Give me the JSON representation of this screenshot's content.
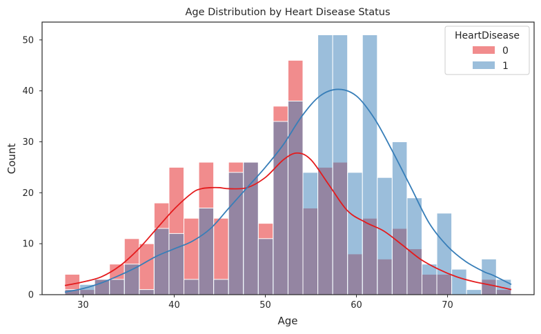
{
  "chart_data": {
    "type": "bar",
    "title": "Age Distribution by Heart Disease Status",
    "xlabel": "Age",
    "ylabel": "Count",
    "xlim": [
      25.5,
      79.5
    ],
    "ylim": [
      0,
      53.5
    ],
    "xticks": [
      30,
      40,
      50,
      60,
      70
    ],
    "yticks": [
      0,
      10,
      20,
      30,
      40,
      50
    ],
    "grid": false,
    "legend_title": "HeartDisease",
    "legend_position": "top-right",
    "bins": {
      "start": 28,
      "width": 1.633,
      "count": 30
    },
    "series": [
      {
        "name": "0",
        "color": "#e41a1c",
        "values": [
          4,
          1,
          3,
          6,
          11,
          10,
          18,
          25,
          15,
          26,
          15,
          26,
          26,
          14,
          37,
          46,
          17,
          25,
          26,
          8,
          15,
          7,
          13,
          9,
          4,
          4,
          0,
          0,
          3,
          1
        ],
        "kde": [
          [
            28,
            1.8
          ],
          [
            30,
            2.5
          ],
          [
            32,
            3.5
          ],
          [
            34,
            5.6
          ],
          [
            36,
            8.8
          ],
          [
            38,
            12.8
          ],
          [
            40,
            16.8
          ],
          [
            42,
            20.0
          ],
          [
            43,
            20.8
          ],
          [
            44,
            21.0
          ],
          [
            45,
            21.0
          ],
          [
            46,
            20.8
          ],
          [
            48,
            21.0
          ],
          [
            50,
            23.0
          ],
          [
            52,
            26.5
          ],
          [
            53.5,
            27.8
          ],
          [
            55,
            26.5
          ],
          [
            57,
            21.5
          ],
          [
            59,
            16.5
          ],
          [
            61,
            14.2
          ],
          [
            63,
            12.5
          ],
          [
            65,
            9.8
          ],
          [
            67,
            7.0
          ],
          [
            69,
            5.0
          ],
          [
            71,
            3.5
          ],
          [
            73,
            2.5
          ],
          [
            75,
            1.8
          ],
          [
            77,
            1.0
          ]
        ]
      },
      {
        "name": "1",
        "color": "#377eb8",
        "values": [
          1,
          2,
          3,
          3,
          6,
          1,
          13,
          12,
          3,
          17,
          3,
          24,
          26,
          11,
          34,
          38,
          24,
          51,
          51,
          24,
          51,
          23,
          30,
          19,
          6,
          16,
          5,
          1,
          7,
          3
        ],
        "kde": [
          [
            28,
            0.5
          ],
          [
            30,
            1.2
          ],
          [
            32,
            2.3
          ],
          [
            34,
            3.8
          ],
          [
            36,
            5.5
          ],
          [
            38,
            7.5
          ],
          [
            40,
            9.0
          ],
          [
            42,
            10.5
          ],
          [
            44,
            13.0
          ],
          [
            46,
            17.0
          ],
          [
            48,
            21.0
          ],
          [
            50,
            25.0
          ],
          [
            52,
            29.5
          ],
          [
            54,
            35.0
          ],
          [
            56,
            39.0
          ],
          [
            58,
            40.3
          ],
          [
            60,
            39.0
          ],
          [
            62,
            34.5
          ],
          [
            64,
            28.0
          ],
          [
            66,
            21.0
          ],
          [
            68,
            14.0
          ],
          [
            70,
            9.5
          ],
          [
            72,
            6.5
          ],
          [
            74,
            4.5
          ],
          [
            75,
            3.8
          ],
          [
            77,
            2.0
          ]
        ]
      }
    ]
  }
}
